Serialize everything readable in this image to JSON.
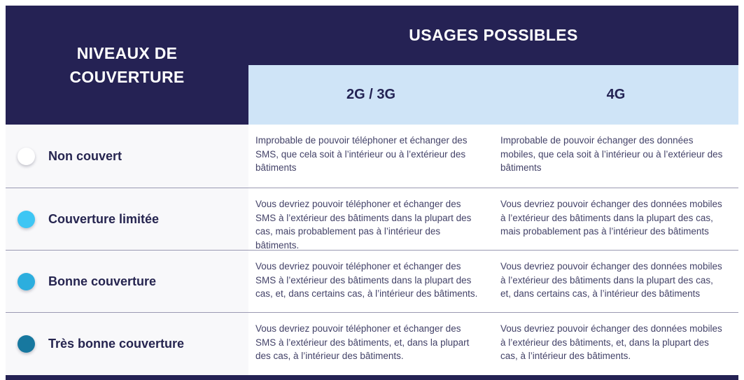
{
  "table": {
    "header": {
      "row_header_title": "NIVEAUX DE\nCOUVERTURE",
      "usages_title": "USAGES POSSIBLES",
      "columns": [
        "2G / 3G",
        "4G"
      ]
    },
    "rows": [
      {
        "level": "Non couvert",
        "dot_color": "#ffffff",
        "cell_2g3g": "Improbable de pouvoir téléphoner et échanger des SMS, que cela soit à l’intérieur ou à l’extérieur des bâtiments",
        "cell_4g": "Improbable de pouvoir échanger des données mobiles, que cela soit à l’intérieur ou à l’extérieur des bâtiments"
      },
      {
        "level": "Couverture limitée",
        "dot_color": "#3ec6f4",
        "cell_2g3g": "Vous devriez pouvoir téléphoner et échanger des SMS à l’extérieur des bâtiments dans la plupart des cas, mais probablement pas à l’intérieur des bâtiments.",
        "cell_4g": "Vous devriez pouvoir échanger des données mobiles à l’extérieur des bâtiments dans la plupart des cas, mais probablement pas à l’intérieur des bâtiments"
      },
      {
        "level": "Bonne couverture",
        "dot_color": "#2caede",
        "cell_2g3g": "Vous devriez pouvoir téléphoner et échanger des SMS à l’extérieur des bâtiments dans la plupart des cas, et, dans certains cas, à l’intérieur des bâtiments.",
        "cell_4g": "Vous devriez pouvoir échanger des données mobiles à l’extérieur des bâtiments dans la plupart des cas, et, dans certains cas, à l’intérieur des bâtiments"
      },
      {
        "level": "Très bonne couverture",
        "dot_color": "#17789f",
        "cell_2g3g": "Vous devriez pouvoir téléphoner et échanger des SMS à l’extérieur des bâtiments, et, dans la plupart des cas, à l’intérieur des bâtiments.",
        "cell_4g": "Vous devriez pouvoir échanger des données mobiles à l’extérieur des bâtiments, et, dans la plupart des cas, à l’intérieur des bâtiments."
      }
    ],
    "colors": {
      "header_navy": "#252254",
      "subheader_blue": "#cfe4f7",
      "row_label_navy": "#262550",
      "body_text": "#434268",
      "separator": "#9a99b2",
      "level_column_bg": "#f8f8fa"
    }
  }
}
